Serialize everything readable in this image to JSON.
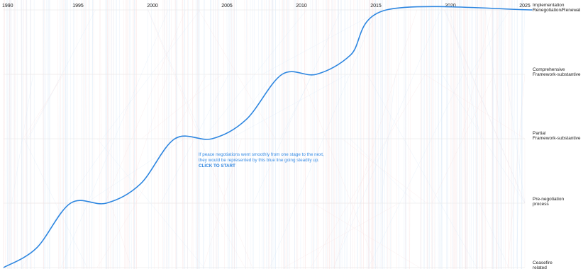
{
  "chart_data": {
    "type": "line",
    "x_label": "",
    "y_label": "",
    "x_range": [
      1990,
      2025
    ],
    "x_ticks": [
      "1990",
      "1995",
      "2000",
      "2005",
      "2010",
      "2015",
      "2020",
      "2025"
    ],
    "y_categories": [
      "Ceasefire related",
      "Pre-negotiation process",
      "Partial Framework-substantive",
      "Comprehensive Framework-substantive",
      "Implementation Renegotiation/Renewal"
    ],
    "stage_labels": [
      {
        "lines": [
          "Implementation",
          "Renegotiation/Renewal"
        ]
      },
      {
        "lines": [
          "Comprehensive",
          "Framework-substantive"
        ]
      },
      {
        "lines": [
          "Partial",
          "Framework-substantive"
        ]
      },
      {
        "lines": [
          "Pre-negotiation",
          "process"
        ]
      },
      {
        "lines": [
          "Ceasefire",
          "related"
        ]
      }
    ],
    "series": [
      {
        "color": "#2d86e0",
        "points": [
          [
            1990.0,
            0
          ],
          [
            1992.2,
            0.3
          ],
          [
            1994.5,
            1
          ],
          [
            1996.9,
            1
          ],
          [
            1999.2,
            1.3
          ],
          [
            2001.5,
            2
          ],
          [
            2004.0,
            2
          ],
          [
            2006.3,
            2.3
          ],
          [
            2008.7,
            3
          ],
          [
            2011.0,
            3
          ],
          [
            2013.3,
            3.3
          ],
          [
            2015.7,
            4
          ],
          [
            2025.5,
            4
          ]
        ]
      }
    ],
    "background_colors": [
      "#d5e6f7",
      "#f7dede"
    ],
    "grid": false
  },
  "annotation": {
    "lines": [
      "If peace negotiations went smoothly from one stage to the next,",
      "they would be represented by this blue line going steadily up."
    ],
    "cta": "CLICK TO START"
  },
  "colors": {
    "accent": "#2d86e0",
    "band_line": "#e6e6e6"
  }
}
